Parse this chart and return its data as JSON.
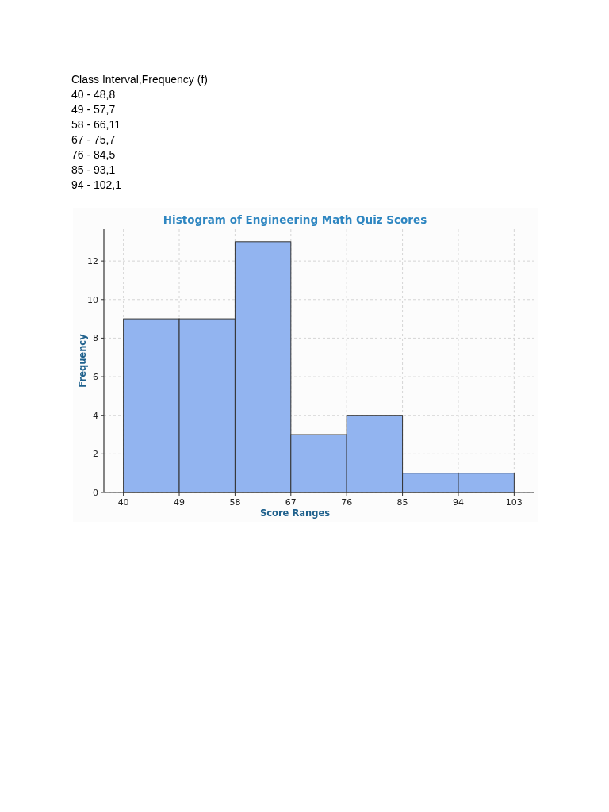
{
  "chart_data": {
    "type": "histogram",
    "title": "Histogram of Engineering Math Quiz Scores",
    "xlabel": "Score Ranges",
    "ylabel": "Frequency",
    "bins": [
      40,
      49,
      58,
      67,
      76,
      85,
      94,
      103
    ],
    "values": [
      9,
      9,
      13,
      3,
      4,
      1,
      1
    ],
    "color": "#92b4f0",
    "xlim": [
      36.85,
      106.15
    ],
    "xticks": [
      40,
      49,
      58,
      67,
      76,
      85,
      94,
      103
    ],
    "ylim": [
      0,
      13.65
    ],
    "yticks": [
      0,
      2,
      4,
      6,
      8,
      10,
      12
    ],
    "grid": true,
    "annotations": [
      "Class Interval,Frequency (f)",
      "40 - 48,8",
      "49 - 57,7",
      "58 - 66,11",
      "67 - 75,7",
      "76 - 84,5",
      "85 - 93,1",
      "94 - 102,1"
    ]
  }
}
